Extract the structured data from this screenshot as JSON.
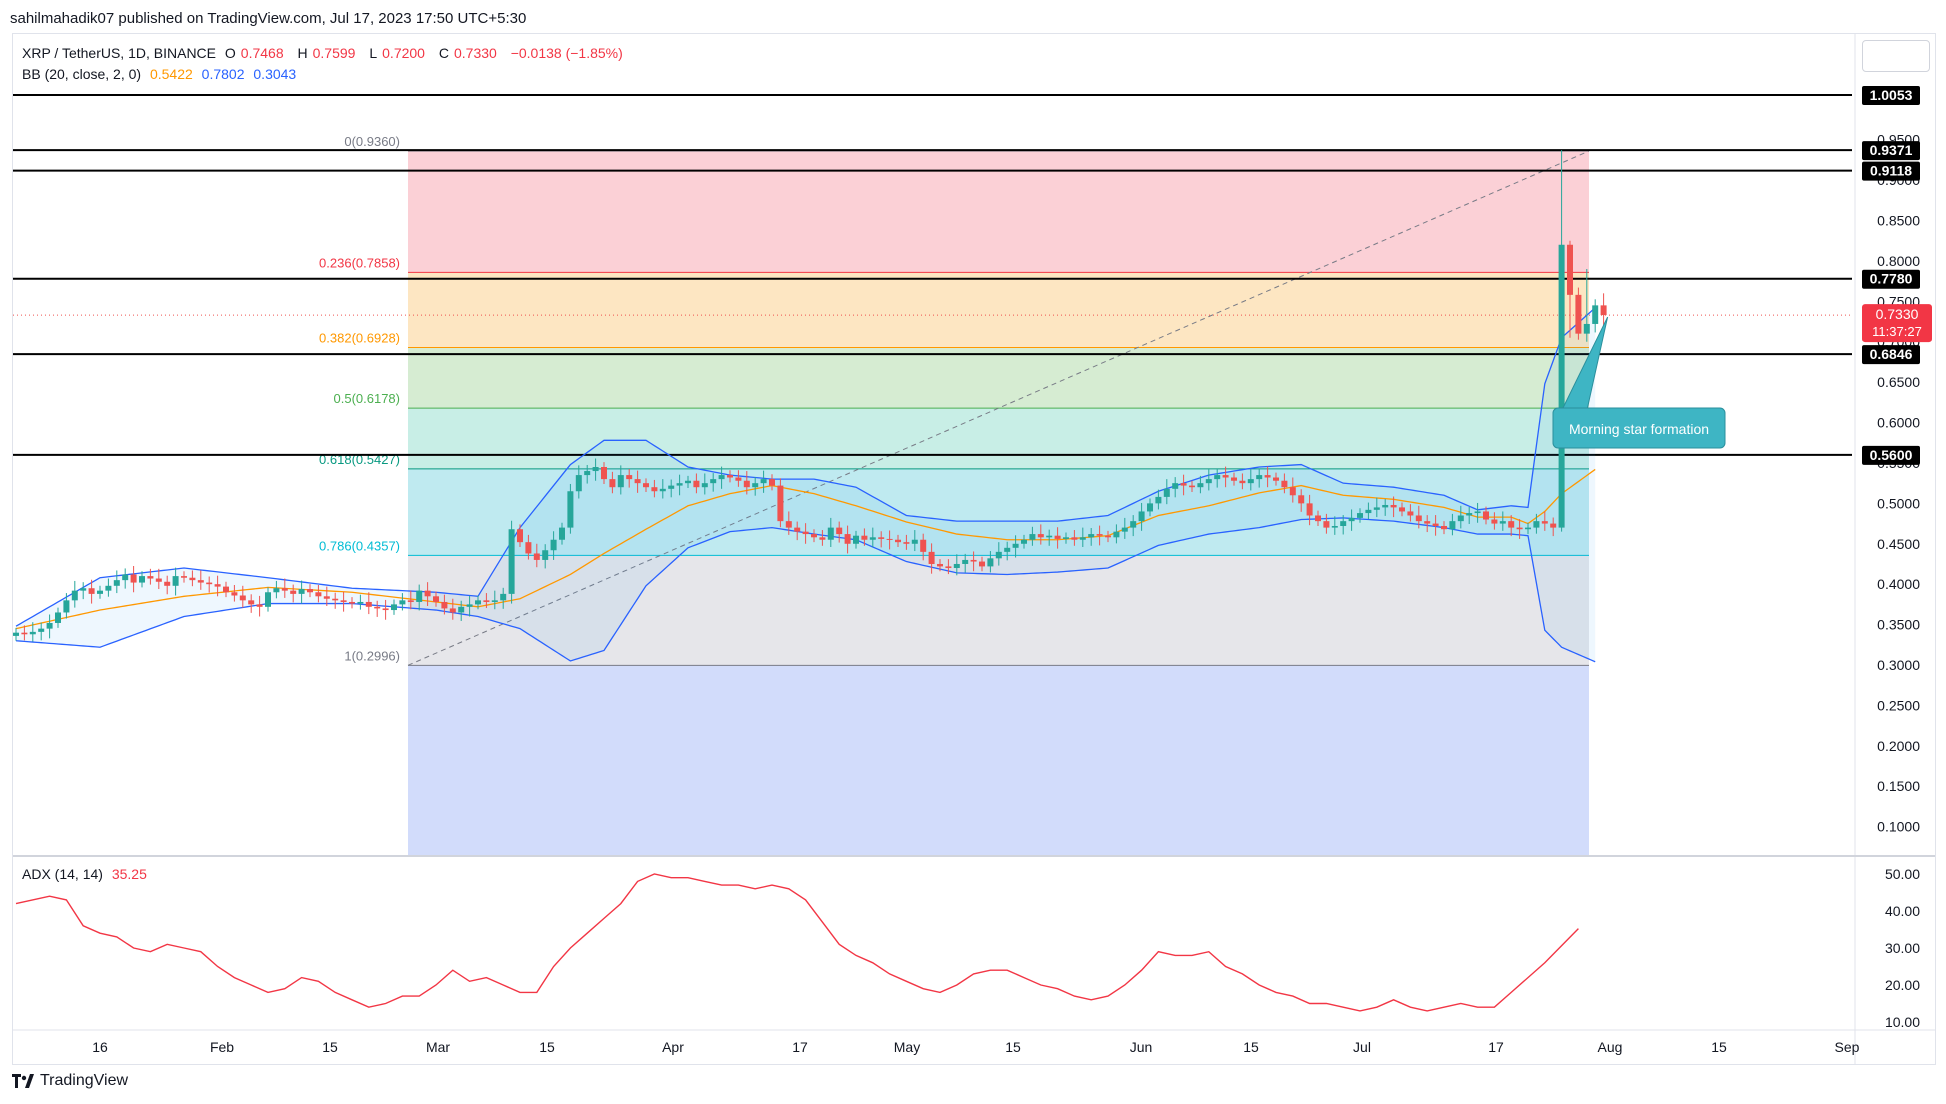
{
  "publisher_line": "sahilmahadik07 published on TradingView.com, Jul 17, 2023 17:50 UTC+5:30",
  "footer_brand": "TradingView",
  "legend": {
    "symbol": "XRP / TetherUS, 1D, BINANCE",
    "o_label": "O",
    "o": "0.7468",
    "h_label": "H",
    "h": "0.7599",
    "l_label": "L",
    "l": "0.7200",
    "c_label": "C",
    "c": "0.7330",
    "change": "−0.0138 (−1.85%)",
    "bb_label": "BB (20, close, 2, 0)",
    "bb_basis": "0.5422",
    "bb_upper": "0.7802",
    "bb_lower": "0.3043",
    "adx_label": "ADX (14, 14)",
    "adx_value": "35.25"
  },
  "colors": {
    "up": "#26a69a",
    "down": "#ef5350",
    "bb_band": "#2962ff",
    "bb_basis": "#ff9800",
    "adx": "#f23645",
    "price_badge": "#f23645",
    "callout": "#3eb5c4"
  },
  "annotation": "Morning star formation",
  "price_badge": {
    "price": "0.7330",
    "countdown": "11:37:27"
  },
  "chart_data": [
    {
      "type": "candlestick",
      "title": "XRP / TetherUS, 1D, BINANCE",
      "x_axis_ticks": [
        "16",
        "Feb",
        "15",
        "Mar",
        "15",
        "Apr",
        "17",
        "May",
        "15",
        "Jun",
        "15",
        "Jul",
        "17",
        "Aug",
        "15",
        "Sep"
      ],
      "y_axis_ticks": [
        "0.9500",
        "0.9000",
        "0.8500",
        "0.8000",
        "0.7500",
        "0.7000",
        "0.6500",
        "0.6000",
        "0.5500",
        "0.5000",
        "0.4500",
        "0.4000",
        "0.3500",
        "0.3000",
        "0.2500",
        "0.2000",
        "0.1500",
        "0.1000"
      ],
      "ylim": [
        0.06,
        1.03
      ],
      "grid": false,
      "horizontal_levels": [
        "1.0053",
        "0.9371",
        "0.9118",
        "0.7780",
        "0.6846",
        "0.5600"
      ],
      "fibonacci_retracement": [
        {
          "ratio": "0",
          "price": "0.9360",
          "label": "0(0.9360)"
        },
        {
          "ratio": "0.236",
          "price": "0.7858",
          "label": "0.236(0.7858)"
        },
        {
          "ratio": "0.382",
          "price": "0.6928",
          "label": "0.382(0.6928)"
        },
        {
          "ratio": "0.5",
          "price": "0.6178",
          "label": "0.5(0.6178)"
        },
        {
          "ratio": "0.618",
          "price": "0.5427",
          "label": "0.618(0.5427)"
        },
        {
          "ratio": "0.786",
          "price": "0.4357",
          "label": "0.786(0.4357)"
        },
        {
          "ratio": "1",
          "price": "0.2996",
          "label": "1(0.2996)"
        }
      ],
      "closes": [
        0.34,
        0.338,
        0.341,
        0.345,
        0.352,
        0.365,
        0.38,
        0.392,
        0.395,
        0.388,
        0.392,
        0.398,
        0.405,
        0.412,
        0.402,
        0.41,
        0.407,
        0.403,
        0.398,
        0.41,
        0.408,
        0.405,
        0.402,
        0.4,
        0.397,
        0.39,
        0.386,
        0.38,
        0.375,
        0.372,
        0.39,
        0.395,
        0.392,
        0.388,
        0.394,
        0.39,
        0.385,
        0.382,
        0.38,
        0.378,
        0.376,
        0.378,
        0.372,
        0.37,
        0.368,
        0.375,
        0.38,
        0.378,
        0.392,
        0.385,
        0.378,
        0.37,
        0.365,
        0.372,
        0.375,
        0.38,
        0.378,
        0.38,
        0.388,
        0.468,
        0.452,
        0.438,
        0.43,
        0.442,
        0.455,
        0.47,
        0.515,
        0.535,
        0.54,
        0.545,
        0.53,
        0.52,
        0.535,
        0.53,
        0.525,
        0.52,
        0.515,
        0.518,
        0.522,
        0.525,
        0.528,
        0.52,
        0.525,
        0.53,
        0.535,
        0.532,
        0.528,
        0.52,
        0.525,
        0.53,
        0.522,
        0.478,
        0.47,
        0.465,
        0.462,
        0.458,
        0.455,
        0.47,
        0.462,
        0.45,
        0.46,
        0.455,
        0.458,
        0.456,
        0.455,
        0.452,
        0.45,
        0.455,
        0.44,
        0.425,
        0.422,
        0.42,
        0.425,
        0.43,
        0.428,
        0.422,
        0.432,
        0.44,
        0.445,
        0.45,
        0.455,
        0.462,
        0.458,
        0.46,
        0.456,
        0.458,
        0.455,
        0.458,
        0.462,
        0.46,
        0.458,
        0.465,
        0.47,
        0.478,
        0.49,
        0.5,
        0.508,
        0.518,
        0.525,
        0.522,
        0.52,
        0.525,
        0.53,
        0.535,
        0.532,
        0.528,
        0.525,
        0.53,
        0.535,
        0.532,
        0.528,
        0.52,
        0.51,
        0.5,
        0.485,
        0.478,
        0.47,
        0.472,
        0.478,
        0.482,
        0.488,
        0.492,
        0.495,
        0.498,
        0.495,
        0.49,
        0.485,
        0.478,
        0.475,
        0.472,
        0.468,
        0.478,
        0.485,
        0.488,
        0.49,
        0.48,
        0.475,
        0.478,
        0.47,
        0.468,
        0.47,
        0.478,
        0.475,
        0.47,
        0.82,
        0.758,
        0.71,
        0.722,
        0.745,
        0.733
      ],
      "bollinger": {
        "labels": [
          "0.5422",
          "0.7802",
          "0.3043"
        ],
        "upper_anchors": [
          [
            0,
            0.348
          ],
          [
            10,
            0.408
          ],
          [
            20,
            0.42
          ],
          [
            30,
            0.408
          ],
          [
            40,
            0.395
          ],
          [
            50,
            0.39
          ],
          [
            55,
            0.385
          ],
          [
            60,
            0.47
          ],
          [
            66,
            0.548
          ],
          [
            70,
            0.578
          ],
          [
            75,
            0.578
          ],
          [
            80,
            0.545
          ],
          [
            85,
            0.535
          ],
          [
            90,
            0.53
          ],
          [
            95,
            0.53
          ],
          [
            100,
            0.52
          ],
          [
            106,
            0.485
          ],
          [
            112,
            0.478
          ],
          [
            118,
            0.478
          ],
          [
            124,
            0.478
          ],
          [
            130,
            0.485
          ],
          [
            136,
            0.515
          ],
          [
            142,
            0.535
          ],
          [
            148,
            0.545
          ],
          [
            153,
            0.548
          ],
          [
            158,
            0.525
          ],
          [
            164,
            0.52
          ],
          [
            170,
            0.51
          ],
          [
            174,
            0.492
          ],
          [
            178,
            0.497
          ],
          [
            180,
            0.495
          ],
          [
            182,
            0.648
          ],
          [
            184,
            0.705
          ],
          [
            188,
            0.742
          ]
        ],
        "basis_anchors": [
          [
            0,
            0.345
          ],
          [
            10,
            0.368
          ],
          [
            20,
            0.385
          ],
          [
            30,
            0.396
          ],
          [
            40,
            0.39
          ],
          [
            50,
            0.378
          ],
          [
            55,
            0.372
          ],
          [
            60,
            0.382
          ],
          [
            66,
            0.412
          ],
          [
            70,
            0.438
          ],
          [
            75,
            0.468
          ],
          [
            80,
            0.497
          ],
          [
            85,
            0.512
          ],
          [
            90,
            0.522
          ],
          [
            95,
            0.512
          ],
          [
            100,
            0.497
          ],
          [
            106,
            0.477
          ],
          [
            112,
            0.462
          ],
          [
            118,
            0.455
          ],
          [
            124,
            0.455
          ],
          [
            130,
            0.46
          ],
          [
            136,
            0.485
          ],
          [
            142,
            0.497
          ],
          [
            148,
            0.513
          ],
          [
            153,
            0.522
          ],
          [
            158,
            0.51
          ],
          [
            164,
            0.505
          ],
          [
            170,
            0.495
          ],
          [
            174,
            0.483
          ],
          [
            178,
            0.483
          ],
          [
            180,
            0.475
          ],
          [
            182,
            0.49
          ],
          [
            184,
            0.512
          ],
          [
            188,
            0.542
          ]
        ],
        "lower_anchors": [
          [
            0,
            0.33
          ],
          [
            10,
            0.322
          ],
          [
            20,
            0.36
          ],
          [
            30,
            0.376
          ],
          [
            40,
            0.376
          ],
          [
            50,
            0.368
          ],
          [
            55,
            0.36
          ],
          [
            60,
            0.345
          ],
          [
            66,
            0.305
          ],
          [
            70,
            0.318
          ],
          [
            75,
            0.398
          ],
          [
            80,
            0.445
          ],
          [
            85,
            0.465
          ],
          [
            90,
            0.47
          ],
          [
            95,
            0.462
          ],
          [
            100,
            0.455
          ],
          [
            106,
            0.428
          ],
          [
            112,
            0.414
          ],
          [
            118,
            0.412
          ],
          [
            124,
            0.415
          ],
          [
            130,
            0.42
          ],
          [
            136,
            0.448
          ],
          [
            142,
            0.462
          ],
          [
            148,
            0.47
          ],
          [
            153,
            0.48
          ],
          [
            158,
            0.482
          ],
          [
            164,
            0.478
          ],
          [
            170,
            0.47
          ],
          [
            174,
            0.462
          ],
          [
            178,
            0.462
          ],
          [
            180,
            0.46
          ],
          [
            182,
            0.343
          ],
          [
            184,
            0.322
          ],
          [
            188,
            0.304
          ]
        ]
      }
    },
    {
      "type": "line",
      "title": "ADX (14, 14)",
      "y_axis_ticks": [
        "50.00",
        "40.00",
        "30.00",
        "20.00",
        "10.00"
      ],
      "ylim": [
        5,
        55
      ],
      "series": [
        {
          "name": "ADX (14, 14)",
          "last_value": "35.25",
          "points": [
            [
              0,
              42
            ],
            [
              4,
              44
            ],
            [
              6,
              43
            ],
            [
              8,
              36
            ],
            [
              10,
              34
            ],
            [
              12,
              33
            ],
            [
              14,
              30
            ],
            [
              16,
              29
            ],
            [
              18,
              31
            ],
            [
              20,
              30
            ],
            [
              22,
              29
            ],
            [
              24,
              25
            ],
            [
              26,
              22
            ],
            [
              28,
              20
            ],
            [
              30,
              18
            ],
            [
              32,
              19
            ],
            [
              34,
              22
            ],
            [
              36,
              21
            ],
            [
              38,
              18
            ],
            [
              40,
              16
            ],
            [
              42,
              14
            ],
            [
              44,
              15
            ],
            [
              46,
              17
            ],
            [
              48,
              17
            ],
            [
              50,
              20
            ],
            [
              52,
              24
            ],
            [
              54,
              21
            ],
            [
              56,
              22
            ],
            [
              58,
              20
            ],
            [
              60,
              18
            ],
            [
              62,
              18
            ],
            [
              64,
              25
            ],
            [
              66,
              30
            ],
            [
              68,
              34
            ],
            [
              70,
              38
            ],
            [
              72,
              42
            ],
            [
              74,
              48
            ],
            [
              76,
              50
            ],
            [
              78,
              49
            ],
            [
              80,
              49
            ],
            [
              82,
              48
            ],
            [
              84,
              47
            ],
            [
              86,
              47
            ],
            [
              88,
              46
            ],
            [
              90,
              47
            ],
            [
              92,
              46
            ],
            [
              94,
              43
            ],
            [
              96,
              37
            ],
            [
              98,
              31
            ],
            [
              100,
              28
            ],
            [
              102,
              26
            ],
            [
              104,
              23
            ],
            [
              106,
              21
            ],
            [
              108,
              19
            ],
            [
              110,
              18
            ],
            [
              112,
              20
            ],
            [
              114,
              23
            ],
            [
              116,
              24
            ],
            [
              118,
              24
            ],
            [
              120,
              22
            ],
            [
              122,
              20
            ],
            [
              124,
              19
            ],
            [
              126,
              17
            ],
            [
              128,
              16
            ],
            [
              130,
              17
            ],
            [
              132,
              20
            ],
            [
              134,
              24
            ],
            [
              136,
              29
            ],
            [
              138,
              28
            ],
            [
              140,
              28
            ],
            [
              142,
              29
            ],
            [
              144,
              25
            ],
            [
              146,
              23
            ],
            [
              148,
              20
            ],
            [
              150,
              18
            ],
            [
              152,
              17
            ],
            [
              154,
              15
            ],
            [
              156,
              15
            ],
            [
              158,
              14
            ],
            [
              160,
              13
            ],
            [
              162,
              14
            ],
            [
              164,
              16
            ],
            [
              166,
              14
            ],
            [
              168,
              13
            ],
            [
              170,
              14
            ],
            [
              172,
              15
            ],
            [
              174,
              14
            ],
            [
              176,
              14
            ],
            [
              178,
              18
            ],
            [
              182,
              26
            ],
            [
              186,
              35.25
            ]
          ]
        }
      ]
    }
  ]
}
